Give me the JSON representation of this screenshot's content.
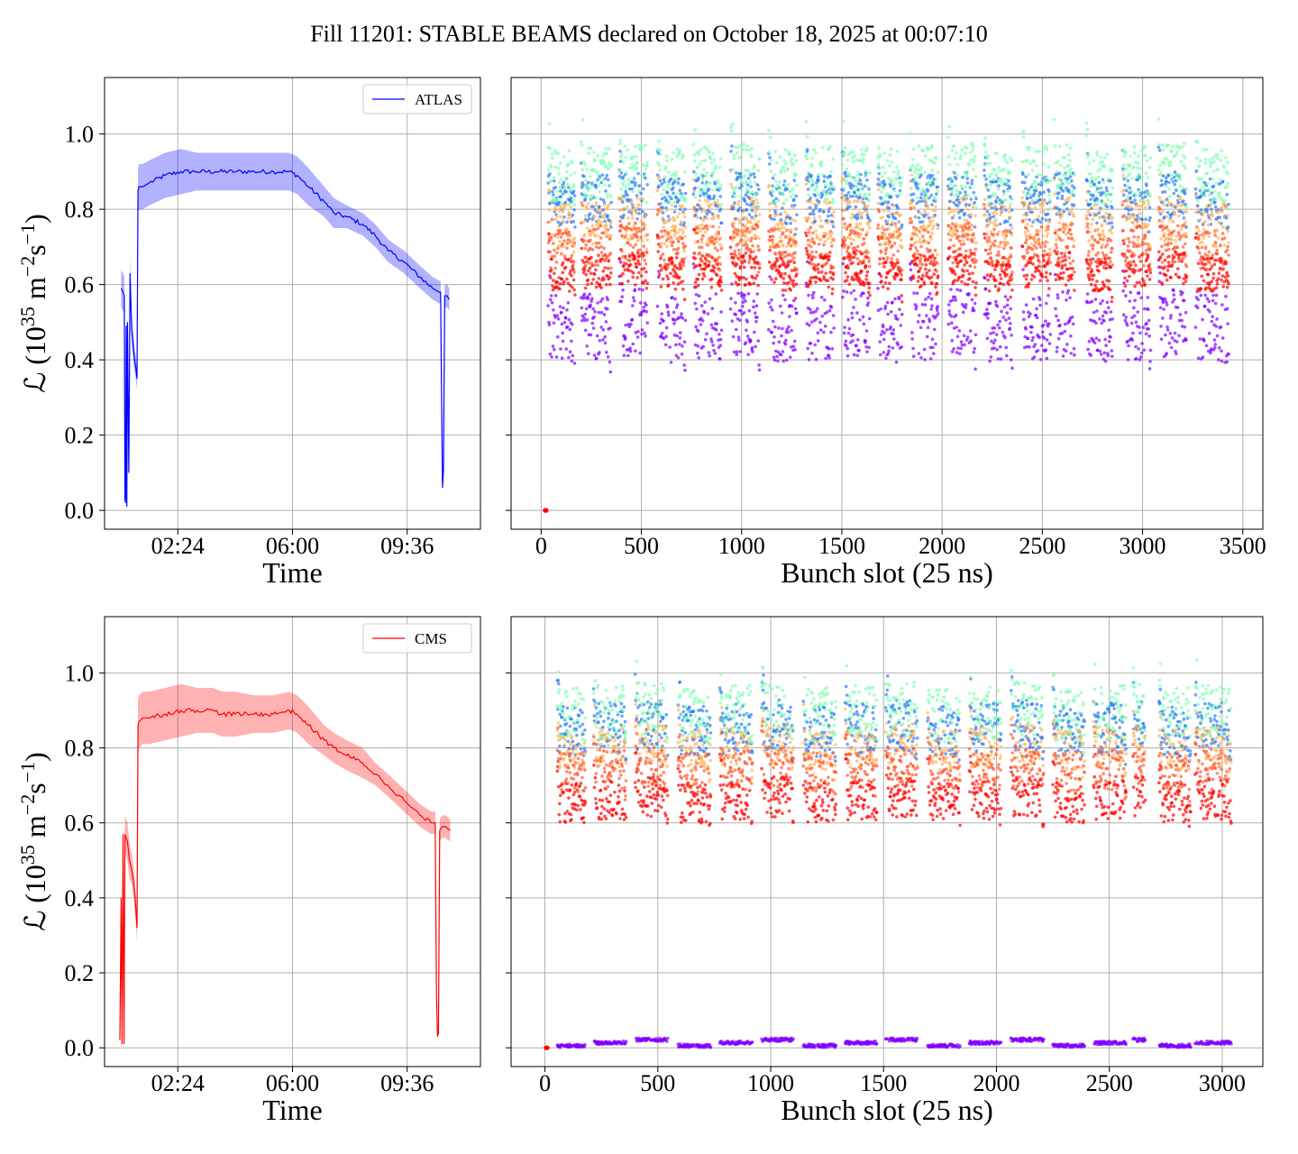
{
  "suptitle": "Fill 11201: STABLE BEAMS declared on October 18, 2025 at 00:07:10",
  "chart_data": [
    {
      "id": "atlas-time",
      "type": "line",
      "xlabel": "Time",
      "ylabel": "ℒ (10^35 m^-2 s^-1)",
      "ylabel_parts": [
        "ℒ (10",
        "35",
        " m",
        "−2",
        "s",
        "−1",
        ")"
      ],
      "x_unit": "hours since 00:00",
      "xlim": [
        0.1,
        11.9
      ],
      "ylim": [
        -0.05,
        1.15
      ],
      "xticks": [
        {
          "v": 2.4,
          "label": "02:24"
        },
        {
          "v": 6.0,
          "label": "06:00"
        },
        {
          "v": 9.6,
          "label": "09:36"
        }
      ],
      "yticks": [
        {
          "v": 0.0,
          "label": "0.0"
        },
        {
          "v": 0.2,
          "label": "0.2"
        },
        {
          "v": 0.4,
          "label": "0.4"
        },
        {
          "v": 0.6,
          "label": "0.6"
        },
        {
          "v": 0.8,
          "label": "0.8"
        },
        {
          "v": 1.0,
          "label": "1.0"
        }
      ],
      "grid": true,
      "legend": {
        "position": "upper right",
        "entries": [
          {
            "label": "ATLAS",
            "color": "#0000ff"
          }
        ]
      },
      "series": [
        {
          "name": "ATLAS",
          "color": "#0000ff",
          "band_color": "#0000ff",
          "x": [
            0.62,
            0.68,
            0.72,
            0.74,
            0.76,
            0.78,
            0.8,
            0.82,
            0.86,
            0.9,
            0.95,
            1.0,
            1.04,
            1.08,
            1.12,
            1.15,
            1.18,
            1.3,
            1.5,
            2.0,
            2.5,
            3.0,
            3.6,
            4.2,
            4.8,
            5.4,
            5.9,
            6.15,
            6.5,
            7.0,
            7.3,
            7.7,
            8.2,
            8.6,
            9.0,
            9.5,
            10.0,
            10.4,
            10.6,
            10.65,
            10.68,
            10.71,
            10.74,
            10.78,
            10.85,
            10.92
          ],
          "y": [
            0.59,
            0.58,
            0.57,
            0.03,
            0.02,
            0.49,
            0.01,
            0.5,
            0.1,
            0.63,
            0.48,
            0.44,
            0.4,
            0.38,
            0.35,
            0.85,
            0.86,
            0.86,
            0.87,
            0.89,
            0.9,
            0.9,
            0.9,
            0.9,
            0.9,
            0.9,
            0.9,
            0.89,
            0.86,
            0.82,
            0.79,
            0.78,
            0.76,
            0.73,
            0.69,
            0.66,
            0.62,
            0.59,
            0.58,
            0.58,
            0.3,
            0.06,
            0.11,
            0.57,
            0.57,
            0.56
          ],
          "band": [
            0.05,
            0.05,
            0.05,
            0.005,
            0.005,
            0.04,
            0.005,
            0.04,
            0.01,
            0.05,
            0.04,
            0.04,
            0.03,
            0.03,
            0.03,
            0.06,
            0.06,
            0.06,
            0.06,
            0.06,
            0.06,
            0.05,
            0.05,
            0.05,
            0.05,
            0.05,
            0.05,
            0.05,
            0.05,
            0.04,
            0.04,
            0.03,
            0.03,
            0.03,
            0.03,
            0.03,
            0.03,
            0.03,
            0.03,
            0.03,
            0.02,
            0.005,
            0.01,
            0.03,
            0.03,
            0.03
          ]
        }
      ]
    },
    {
      "id": "atlas-bunch",
      "type": "scatter",
      "xlabel": "Bunch slot (25 ns)",
      "xlim": [
        -150,
        3600
      ],
      "ylim": [
        -0.05,
        1.15
      ],
      "xticks": [
        {
          "v": 0,
          "label": "0"
        },
        {
          "v": 500,
          "label": "500"
        },
        {
          "v": 1000,
          "label": "1000"
        },
        {
          "v": 1500,
          "label": "1500"
        },
        {
          "v": 2000,
          "label": "2000"
        },
        {
          "v": 2500,
          "label": "2500"
        },
        {
          "v": 3000,
          "label": "3000"
        },
        {
          "v": 3500,
          "label": "3500"
        }
      ],
      "yticks": [
        {
          "v": 0.0
        },
        {
          "v": 0.2
        },
        {
          "v": 0.4
        },
        {
          "v": 0.6
        },
        {
          "v": 0.8
        },
        {
          "v": 1.0
        }
      ],
      "grid": true,
      "colormap": "rainbow",
      "series": [
        {
          "time_color": "#8000ff",
          "range": [
            0.42,
            0.62
          ]
        },
        {
          "time_color": "#2c7ef7",
          "range": [
            0.78,
            0.92
          ]
        },
        {
          "time_color": "#80ffb4",
          "range": [
            0.84,
            1.0
          ]
        },
        {
          "time_color": "#ffb360",
          "range": [
            0.72,
            0.85
          ]
        },
        {
          "time_color": "#ff5a2d",
          "range": [
            0.66,
            0.78
          ]
        },
        {
          "time_color": "#ff0000",
          "range": [
            0.6,
            0.7
          ]
        }
      ],
      "trains": [
        [
          35,
          170
        ],
        [
          200,
          350
        ],
        [
          390,
          530
        ],
        [
          580,
          720
        ],
        [
          760,
          900
        ],
        [
          945,
          1090
        ],
        [
          1135,
          1275
        ],
        [
          1320,
          1460
        ],
        [
          1500,
          1640
        ],
        [
          1680,
          1800
        ],
        [
          1840,
          1980
        ],
        [
          2030,
          2170
        ],
        [
          2210,
          2350
        ],
        [
          2400,
          2540
        ],
        [
          2560,
          2660
        ],
        [
          2720,
          2850
        ],
        [
          2900,
          3040
        ],
        [
          3080,
          3220
        ],
        [
          3265,
          3430
        ]
      ],
      "outliers": [
        {
          "x": 20,
          "y": 0.0,
          "color": "#ff0000"
        },
        {
          "x": 25,
          "y": 0.0,
          "color": "#ff0000"
        }
      ]
    },
    {
      "id": "cms-time",
      "type": "line",
      "xlabel": "Time",
      "ylabel": "ℒ (10^35 m^-2 s^-1)",
      "ylabel_parts": [
        "ℒ (10",
        "35",
        " m",
        "−2",
        "s",
        "−1",
        ")"
      ],
      "x_unit": "hours since 00:00",
      "xlim": [
        0.1,
        11.9
      ],
      "ylim": [
        -0.05,
        1.15
      ],
      "xticks": [
        {
          "v": 2.4,
          "label": "02:24"
        },
        {
          "v": 6.0,
          "label": "06:00"
        },
        {
          "v": 9.6,
          "label": "09:36"
        }
      ],
      "yticks": [
        {
          "v": 0.0,
          "label": "0.0"
        },
        {
          "v": 0.2,
          "label": "0.2"
        },
        {
          "v": 0.4,
          "label": "0.4"
        },
        {
          "v": 0.6,
          "label": "0.6"
        },
        {
          "v": 0.8,
          "label": "0.8"
        },
        {
          "v": 1.0,
          "label": "1.0"
        }
      ],
      "grid": true,
      "legend": {
        "position": "upper right",
        "entries": [
          {
            "label": "CMS",
            "color": "#ff0000"
          }
        ]
      },
      "series": [
        {
          "name": "CMS",
          "color": "#ff0000",
          "band_color": "#ff0000",
          "x": [
            0.58,
            0.62,
            0.65,
            0.68,
            0.71,
            0.74,
            0.78,
            0.82,
            0.88,
            0.94,
            1.0,
            1.06,
            1.12,
            1.15,
            1.18,
            1.3,
            1.5,
            2.0,
            2.5,
            3.0,
            3.5,
            3.8,
            4.2,
            4.8,
            5.4,
            5.9,
            6.15,
            6.5,
            7.0,
            7.3,
            7.7,
            8.2,
            8.6,
            9.0,
            9.5,
            10.0,
            10.35,
            10.48,
            10.52,
            10.55,
            10.58,
            10.62,
            10.7,
            10.8,
            10.95
          ],
          "y": [
            0.02,
            0.4,
            0.01,
            0.57,
            0.01,
            0.57,
            0.56,
            0.55,
            0.5,
            0.48,
            0.45,
            0.4,
            0.32,
            0.86,
            0.87,
            0.88,
            0.88,
            0.89,
            0.9,
            0.9,
            0.9,
            0.89,
            0.89,
            0.89,
            0.89,
            0.9,
            0.89,
            0.86,
            0.82,
            0.8,
            0.78,
            0.76,
            0.73,
            0.7,
            0.66,
            0.62,
            0.6,
            0.6,
            0.15,
            0.03,
            0.04,
            0.58,
            0.59,
            0.59,
            0.58
          ],
          "band": [
            0.005,
            0.03,
            0.005,
            0.05,
            0.005,
            0.05,
            0.05,
            0.05,
            0.05,
            0.04,
            0.04,
            0.04,
            0.04,
            0.07,
            0.07,
            0.07,
            0.07,
            0.07,
            0.07,
            0.06,
            0.06,
            0.06,
            0.06,
            0.05,
            0.05,
            0.05,
            0.05,
            0.05,
            0.04,
            0.04,
            0.04,
            0.04,
            0.03,
            0.03,
            0.03,
            0.03,
            0.03,
            0.03,
            0.01,
            0.005,
            0.005,
            0.03,
            0.03,
            0.03,
            0.03
          ]
        }
      ]
    },
    {
      "id": "cms-bunch",
      "type": "scatter",
      "xlabel": "Bunch slot (25 ns)",
      "xlim": [
        -150,
        3180
      ],
      "ylim": [
        -0.05,
        1.15
      ],
      "xticks": [
        {
          "v": 0,
          "label": "0"
        },
        {
          "v": 500,
          "label": "500"
        },
        {
          "v": 1000,
          "label": "1000"
        },
        {
          "v": 1500,
          "label": "1500"
        },
        {
          "v": 2000,
          "label": "2000"
        },
        {
          "v": 2500,
          "label": "2500"
        },
        {
          "v": 3000,
          "label": "3000"
        }
      ],
      "yticks": [
        {
          "v": 0.0
        },
        {
          "v": 0.2
        },
        {
          "v": 0.4
        },
        {
          "v": 0.6
        },
        {
          "v": 0.8
        },
        {
          "v": 1.0
        }
      ],
      "grid": true,
      "colormap": "rainbow",
      "series": [
        {
          "time_color": "#8000ff",
          "range": [
            0.01,
            0.02
          ]
        },
        {
          "time_color": "#2c7ef7",
          "range": [
            0.8,
            0.95
          ]
        },
        {
          "time_color": "#80ffb4",
          "range": [
            0.84,
            1.0
          ]
        },
        {
          "time_color": "#ffb360",
          "range": [
            0.76,
            0.88
          ]
        },
        {
          "time_color": "#ff5a2d",
          "range": [
            0.7,
            0.82
          ]
        },
        {
          "time_color": "#ff0000",
          "range": [
            0.62,
            0.74
          ]
        }
      ],
      "trains": [
        [
          55,
          180
        ],
        [
          215,
          360
        ],
        [
          400,
          545
        ],
        [
          590,
          735
        ],
        [
          775,
          920
        ],
        [
          960,
          1100
        ],
        [
          1145,
          1290
        ],
        [
          1330,
          1470
        ],
        [
          1510,
          1650
        ],
        [
          1695,
          1840
        ],
        [
          1880,
          2020
        ],
        [
          2065,
          2210
        ],
        [
          2250,
          2390
        ],
        [
          2430,
          2575
        ],
        [
          2605,
          2660
        ],
        [
          2720,
          2860
        ],
        [
          2880,
          3040
        ]
      ],
      "outliers": [
        {
          "x": 5,
          "y": 0.0,
          "color": "#ff0000"
        },
        {
          "x": 10,
          "y": 0.0,
          "color": "#ff0000"
        }
      ]
    }
  ]
}
